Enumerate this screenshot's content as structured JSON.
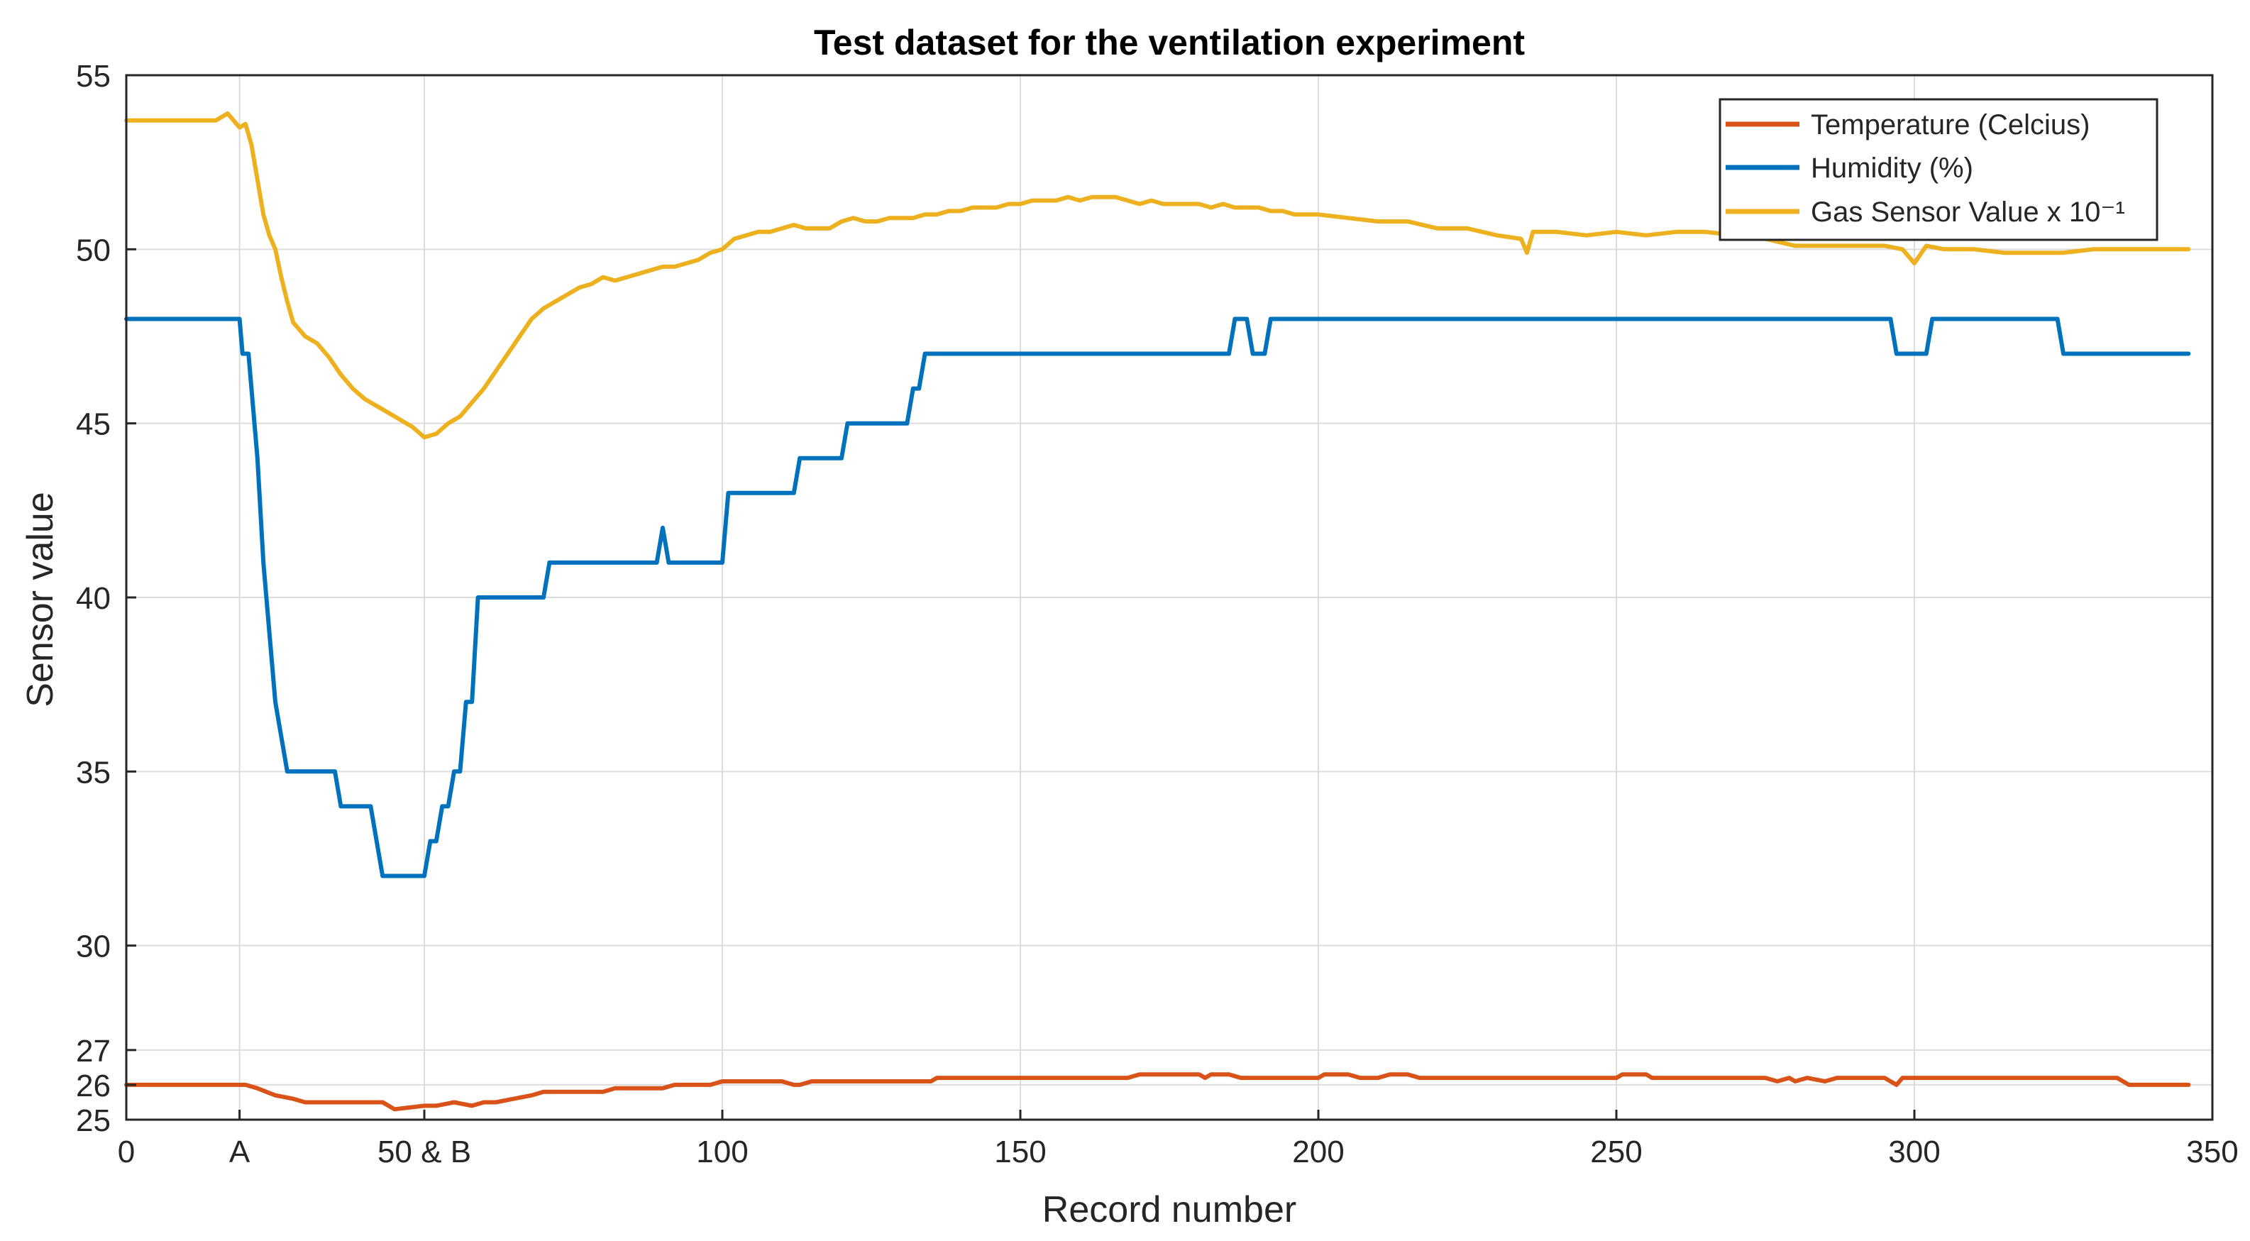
{
  "chart_data": {
    "type": "line",
    "title": "Test dataset for the ventilation experiment",
    "xlabel": "Record number",
    "ylabel": "Sensor value",
    "xlim": [
      0,
      350
    ],
    "ylim": [
      25,
      55
    ],
    "grid": true,
    "legend_position": "top-right",
    "x_ticks": [
      {
        "value": 0,
        "label": "0"
      },
      {
        "value": 19,
        "label": "A"
      },
      {
        "value": 50,
        "label": "50 & B"
      },
      {
        "value": 100,
        "label": "100"
      },
      {
        "value": 150,
        "label": "150"
      },
      {
        "value": 200,
        "label": "200"
      },
      {
        "value": 250,
        "label": "250"
      },
      {
        "value": 300,
        "label": "300"
      },
      {
        "value": 350,
        "label": "350"
      }
    ],
    "y_ticks": [
      {
        "value": 25,
        "label": "25"
      },
      {
        "value": 26,
        "label": "26"
      },
      {
        "value": 27,
        "label": "27"
      },
      {
        "value": 30,
        "label": "30"
      },
      {
        "value": 35,
        "label": "35"
      },
      {
        "value": 40,
        "label": "40"
      },
      {
        "value": 45,
        "label": "45"
      },
      {
        "value": 50,
        "label": "50"
      },
      {
        "value": 55,
        "label": "55"
      }
    ],
    "series": [
      {
        "name": "Temperature (Celcius)",
        "color": "#D95319",
        "x": [
          0,
          20,
          22,
          25,
          28,
          30,
          33,
          43,
          44,
          45,
          50,
          52,
          55,
          58,
          60,
          62,
          65,
          68,
          70,
          75,
          80,
          82,
          90,
          92,
          98,
          100,
          110,
          112,
          113,
          115,
          120,
          125,
          135,
          136,
          140,
          168,
          170,
          175,
          180,
          181,
          182,
          185,
          187,
          200,
          201,
          205,
          207,
          210,
          212,
          215,
          217,
          250,
          251,
          255,
          256,
          270,
          275,
          277,
          279,
          280,
          282,
          285,
          287,
          290,
          295,
          296,
          297,
          298,
          300,
          310,
          320,
          334,
          336,
          340,
          346
        ],
        "y": [
          26,
          26,
          25.9,
          25.7,
          25.6,
          25.5,
          25.5,
          25.5,
          25.4,
          25.3,
          25.4,
          25.4,
          25.5,
          25.4,
          25.5,
          25.5,
          25.6,
          25.7,
          25.8,
          25.8,
          25.8,
          25.9,
          25.9,
          26.0,
          26.0,
          26.1,
          26.1,
          26.0,
          26.0,
          26.1,
          26.1,
          26.1,
          26.1,
          26.2,
          26.2,
          26.2,
          26.3,
          26.3,
          26.3,
          26.2,
          26.3,
          26.3,
          26.2,
          26.2,
          26.3,
          26.3,
          26.2,
          26.2,
          26.3,
          26.3,
          26.2,
          26.2,
          26.3,
          26.3,
          26.2,
          26.2,
          26.2,
          26.1,
          26.2,
          26.1,
          26.2,
          26.1,
          26.2,
          26.2,
          26.2,
          26.1,
          26.0,
          26.2,
          26.2,
          26.2,
          26.2,
          26.2,
          26.0,
          26.0,
          26.0
        ]
      },
      {
        "name": "Humidity (%)",
        "color": "#0072BD",
        "x": [
          0,
          19,
          19.5,
          20.5,
          21,
          22,
          23,
          24,
          25,
          27,
          30,
          35,
          36,
          41,
          42,
          43,
          44,
          50,
          51,
          52,
          53,
          54,
          55,
          56,
          57,
          58,
          59,
          60,
          61,
          62,
          70,
          71,
          89,
          90,
          91,
          99,
          100,
          101,
          112,
          113,
          120,
          121,
          131,
          132,
          133,
          134,
          185,
          186,
          188,
          189,
          191,
          192,
          296,
          297,
          302,
          303,
          324,
          325,
          346
        ],
        "y": [
          48,
          48,
          47,
          47,
          46,
          44,
          41,
          39,
          37,
          35,
          35,
          35,
          34,
          34,
          33,
          32,
          32,
          32,
          33,
          33,
          34,
          34,
          35,
          35,
          37,
          37,
          40,
          40,
          40,
          40,
          40,
          41,
          41,
          42,
          41,
          41,
          41,
          43,
          43,
          44,
          44,
          45,
          45,
          46,
          46,
          47,
          47,
          48,
          48,
          47,
          47,
          48,
          48,
          47,
          47,
          48,
          48,
          47,
          47
        ]
      },
      {
        "name": "Gas Sensor Value x 10⁻¹",
        "color": "#EDB120",
        "x": [
          0,
          5,
          10,
          13,
          15,
          16,
          17,
          18,
          19,
          20,
          21,
          22,
          23,
          24,
          25,
          26,
          27,
          28,
          30,
          32,
          34,
          36,
          38,
          40,
          42,
          44,
          46,
          48,
          50,
          52,
          54,
          56,
          58,
          60,
          62,
          64,
          66,
          68,
          70,
          72,
          74,
          76,
          78,
          80,
          82,
          84,
          86,
          88,
          90,
          92,
          94,
          96,
          98,
          100,
          102,
          104,
          106,
          108,
          110,
          112,
          114,
          116,
          118,
          120,
          122,
          124,
          126,
          128,
          130,
          132,
          134,
          136,
          138,
          140,
          142,
          144,
          146,
          148,
          150,
          152,
          154,
          156,
          158,
          160,
          162,
          164,
          166,
          168,
          170,
          172,
          174,
          176,
          178,
          180,
          182,
          184,
          186,
          188,
          190,
          192,
          194,
          196,
          198,
          200,
          205,
          210,
          215,
          220,
          225,
          230,
          234,
          235,
          236,
          240,
          245,
          250,
          255,
          260,
          265,
          270,
          275,
          280,
          285,
          290,
          295,
          298,
          300,
          302,
          305,
          310,
          315,
          320,
          325,
          330,
          335,
          340,
          346
        ],
        "y": [
          53.7,
          53.7,
          53.7,
          53.7,
          53.7,
          53.8,
          53.9,
          53.7,
          53.5,
          53.6,
          53.0,
          52.0,
          51.0,
          50.4,
          50.0,
          49.2,
          48.5,
          47.9,
          47.5,
          47.3,
          46.9,
          46.4,
          46.0,
          45.7,
          45.5,
          45.3,
          45.1,
          44.9,
          44.6,
          44.7,
          45.0,
          45.2,
          45.6,
          46.0,
          46.5,
          47.0,
          47.5,
          48.0,
          48.3,
          48.5,
          48.7,
          48.9,
          49.0,
          49.2,
          49.1,
          49.2,
          49.3,
          49.4,
          49.5,
          49.5,
          49.6,
          49.7,
          49.9,
          50.0,
          50.3,
          50.4,
          50.5,
          50.5,
          50.6,
          50.7,
          50.6,
          50.6,
          50.6,
          50.8,
          50.9,
          50.8,
          50.8,
          50.9,
          50.9,
          50.9,
          51.0,
          51.0,
          51.1,
          51.1,
          51.2,
          51.2,
          51.2,
          51.3,
          51.3,
          51.4,
          51.4,
          51.4,
          51.5,
          51.4,
          51.5,
          51.5,
          51.5,
          51.4,
          51.3,
          51.4,
          51.3,
          51.3,
          51.3,
          51.3,
          51.2,
          51.3,
          51.2,
          51.2,
          51.2,
          51.1,
          51.1,
          51.0,
          51.0,
          51.0,
          50.9,
          50.8,
          50.8,
          50.6,
          50.6,
          50.4,
          50.3,
          49.9,
          50.5,
          50.5,
          50.4,
          50.5,
          50.4,
          50.5,
          50.5,
          50.4,
          50.3,
          50.1,
          50.1,
          50.1,
          50.1,
          50.0,
          49.6,
          50.1,
          50.0,
          50.0,
          49.9,
          49.9,
          49.9,
          50.0,
          50.0,
          50.0,
          50.0
        ]
      }
    ]
  }
}
